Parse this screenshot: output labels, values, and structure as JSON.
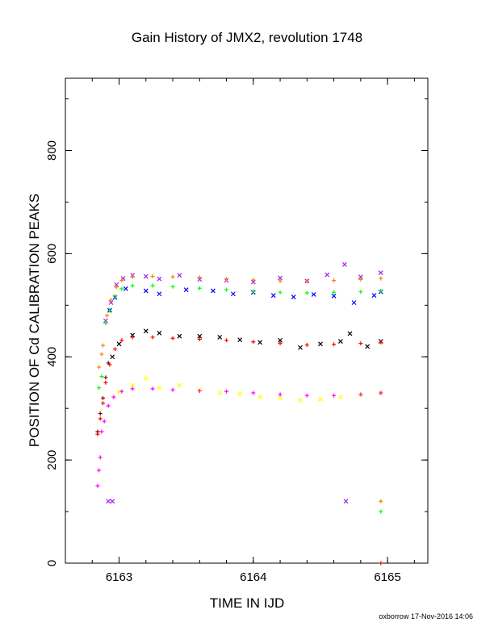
{
  "chart_data": {
    "type": "scatter",
    "title": "Gain History of JMX2, revolution 1748",
    "xlabel": "TIME IN IJD",
    "ylabel": "POSITION OF Cd CALIBRATION PEAKS",
    "xlim": [
      6162.6,
      6165.3
    ],
    "ylim": [
      0,
      940
    ],
    "xticks": [
      6163,
      6164,
      6165
    ],
    "yticks": [
      0,
      200,
      400,
      600,
      800
    ],
    "grid": false,
    "series": [
      {
        "color": "#a020f0",
        "marker": "x",
        "points": [
          [
            6162.92,
            120
          ],
          [
            6162.95,
            120
          ],
          [
            6164.69,
            120
          ],
          [
            6162.9,
            470
          ],
          [
            6162.94,
            505
          ],
          [
            6162.98,
            540
          ],
          [
            6163.03,
            552
          ],
          [
            6163.1,
            558
          ],
          [
            6163.2,
            556
          ],
          [
            6163.3,
            551
          ],
          [
            6163.45,
            558
          ],
          [
            6163.6,
            550
          ],
          [
            6163.8,
            548
          ],
          [
            6164.0,
            545
          ],
          [
            6164.2,
            553
          ],
          [
            6164.4,
            547
          ],
          [
            6164.55,
            559
          ],
          [
            6164.68,
            579
          ],
          [
            6164.8,
            555
          ],
          [
            6164.95,
            563
          ]
        ]
      },
      {
        "color": "#0000ff",
        "marker": "x",
        "points": [
          [
            6162.93,
            490
          ],
          [
            6162.97,
            515
          ],
          [
            6163.05,
            532
          ],
          [
            6163.2,
            528
          ],
          [
            6163.3,
            522
          ],
          [
            6163.5,
            530
          ],
          [
            6163.7,
            528
          ],
          [
            6163.85,
            522
          ],
          [
            6164.0,
            525
          ],
          [
            6164.15,
            519
          ],
          [
            6164.3,
            516
          ],
          [
            6164.45,
            521
          ],
          [
            6164.6,
            518
          ],
          [
            6164.75,
            505
          ],
          [
            6164.9,
            519
          ],
          [
            6164.95,
            526
          ]
        ]
      },
      {
        "color": "#000000",
        "marker": "x",
        "points": [
          [
            6162.95,
            400
          ],
          [
            6163.0,
            425
          ],
          [
            6163.1,
            442
          ],
          [
            6163.2,
            450
          ],
          [
            6163.3,
            446
          ],
          [
            6163.45,
            440
          ],
          [
            6163.6,
            440
          ],
          [
            6163.75,
            438
          ],
          [
            6163.9,
            433
          ],
          [
            6164.05,
            428
          ],
          [
            6164.2,
            432
          ],
          [
            6164.35,
            418
          ],
          [
            6164.5,
            425
          ],
          [
            6164.65,
            430
          ],
          [
            6164.72,
            445
          ],
          [
            6164.85,
            420
          ],
          [
            6164.95,
            430
          ]
        ]
      },
      {
        "color": "#ffff00",
        "marker": "x",
        "points": [
          [
            6163.0,
            332
          ],
          [
            6163.1,
            345
          ],
          [
            6163.2,
            358
          ],
          [
            6163.3,
            340
          ],
          [
            6163.45,
            345
          ],
          [
            6163.6,
            336
          ],
          [
            6163.75,
            330
          ],
          [
            6163.9,
            328
          ],
          [
            6164.05,
            322
          ],
          [
            6164.2,
            320
          ],
          [
            6164.35,
            316
          ],
          [
            6164.5,
            318
          ],
          [
            6164.65,
            322
          ],
          [
            6164.8,
            326
          ],
          [
            6164.95,
            330
          ]
        ]
      },
      {
        "color": "#ff7f00",
        "marker": "+",
        "points": [
          [
            6162.85,
            380
          ],
          [
            6162.87,
            405
          ],
          [
            6162.88,
            422
          ],
          [
            6162.91,
            480
          ],
          [
            6162.94,
            510
          ],
          [
            6162.98,
            535
          ],
          [
            6163.02,
            548
          ],
          [
            6163.1,
            555
          ],
          [
            6163.25,
            556
          ],
          [
            6163.4,
            555
          ],
          [
            6163.6,
            554
          ],
          [
            6163.8,
            551
          ],
          [
            6164.0,
            549
          ],
          [
            6164.2,
            547
          ],
          [
            6164.4,
            546
          ],
          [
            6164.6,
            548
          ],
          [
            6164.8,
            550
          ],
          [
            6164.95,
            552
          ],
          [
            6164.95,
            120
          ]
        ]
      },
      {
        "color": "#00ff00",
        "marker": "+",
        "points": [
          [
            6162.85,
            340
          ],
          [
            6162.87,
            362
          ],
          [
            6162.9,
            465
          ],
          [
            6162.93,
            490
          ],
          [
            6162.97,
            518
          ],
          [
            6163.02,
            532
          ],
          [
            6163.1,
            538
          ],
          [
            6163.25,
            538
          ],
          [
            6163.4,
            536
          ],
          [
            6163.6,
            533
          ],
          [
            6163.8,
            530
          ],
          [
            6164.0,
            527
          ],
          [
            6164.2,
            525
          ],
          [
            6164.4,
            524
          ],
          [
            6164.6,
            525
          ],
          [
            6164.8,
            526
          ],
          [
            6164.95,
            528
          ],
          [
            6164.95,
            100
          ]
        ]
      },
      {
        "color": "#ff0000",
        "marker": "+",
        "points": [
          [
            6162.84,
            250
          ],
          [
            6162.86,
            280
          ],
          [
            6162.88,
            310
          ],
          [
            6162.9,
            350
          ],
          [
            6162.93,
            385
          ],
          [
            6162.97,
            415
          ],
          [
            6163.02,
            432
          ],
          [
            6163.1,
            438
          ],
          [
            6163.25,
            438
          ],
          [
            6163.4,
            436
          ],
          [
            6163.6,
            434
          ],
          [
            6163.8,
            432
          ],
          [
            6164.0,
            429
          ],
          [
            6164.2,
            426
          ],
          [
            6164.4,
            423
          ],
          [
            6164.6,
            424
          ],
          [
            6164.8,
            426
          ],
          [
            6164.95,
            428
          ],
          [
            6164.95,
            0
          ]
        ]
      },
      {
        "color": "#8b0000",
        "marker": "+",
        "points": [
          [
            6162.84,
            255
          ],
          [
            6162.86,
            290
          ],
          [
            6162.88,
            320
          ],
          [
            6162.9,
            360
          ],
          [
            6162.92,
            388
          ]
        ]
      },
      {
        "color": "#ff00ff",
        "marker": "+",
        "points": [
          [
            6162.84,
            150
          ],
          [
            6162.85,
            180
          ],
          [
            6162.86,
            205
          ],
          [
            6162.87,
            255
          ],
          [
            6162.89,
            275
          ],
          [
            6162.92,
            305
          ],
          [
            6162.96,
            322
          ],
          [
            6163.02,
            333
          ],
          [
            6163.1,
            338
          ],
          [
            6163.25,
            338
          ],
          [
            6163.4,
            336
          ],
          [
            6163.6,
            334
          ],
          [
            6163.8,
            333
          ],
          [
            6164.0,
            330
          ],
          [
            6164.2,
            327
          ],
          [
            6164.4,
            325
          ],
          [
            6164.6,
            325
          ],
          [
            6164.8,
            327
          ],
          [
            6164.95,
            330
          ]
        ]
      }
    ]
  },
  "footer": "oxborrow 17-Nov-2016 14:06"
}
